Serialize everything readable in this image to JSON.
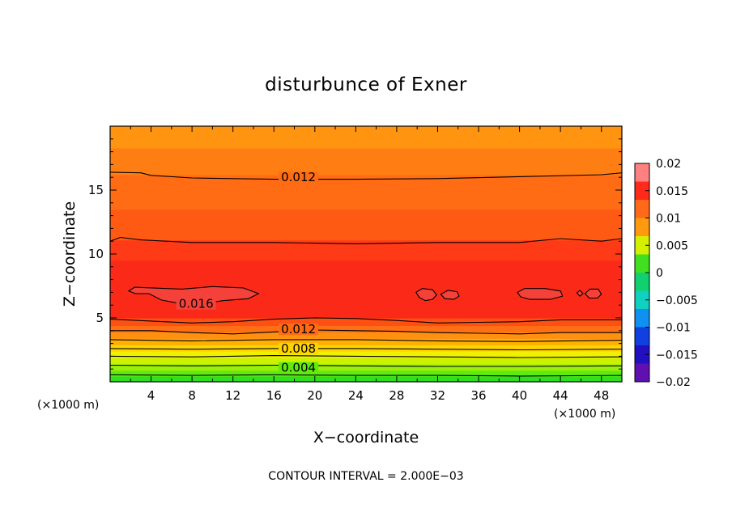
{
  "chart_data": {
    "type": "heatmap",
    "title": "disturbunce of Exner",
    "xlabel": "X−coordinate",
    "ylabel": "Z−coordinate",
    "x_unit": "(×1000 m)",
    "y_unit": "(×1000 m)",
    "xlim": [
      0,
      50
    ],
    "ylim": [
      0,
      20
    ],
    "x_ticks": [
      4,
      8,
      12,
      16,
      20,
      24,
      28,
      32,
      36,
      40,
      44,
      48
    ],
    "y_ticks": [
      5,
      10,
      15
    ],
    "x_tick_labels": [
      "4",
      "8",
      "12",
      "16",
      "20",
      "24",
      "28",
      "32",
      "36",
      "40",
      "44",
      "48"
    ],
    "y_tick_labels": [
      "5",
      "10",
      "15"
    ],
    "footnote": "CONTOUR INTERVAL = 2.000E−03",
    "contour_interval": 0.002,
    "colorbar": {
      "range": [
        -0.02,
        0.02
      ],
      "ticks": [
        0.02,
        0.015,
        0.01,
        0.005,
        0,
        -0.005,
        -0.01,
        -0.015,
        -0.02
      ],
      "tick_labels": [
        "0.02",
        "0.015",
        "0.01",
        "0.005",
        "0",
        "−0.005",
        "−0.01",
        "−0.015",
        "−0.02"
      ],
      "colors": [
        "#ff8080",
        "#ff2a1a",
        "#ff6a1a",
        "#ff9a10",
        "#d4f000",
        "#40e020",
        "#10d070",
        "#10d0c0",
        "#1090f0",
        "#1040e0",
        "#2010c0",
        "#6010b0"
      ]
    },
    "contour_labels": [
      {
        "text": "0.012",
        "x": 18.4,
        "z": 16.0
      },
      {
        "text": "0.016",
        "x": 8.4,
        "z": 6.1
      },
      {
        "text": "0.012",
        "x": 18.4,
        "z": 4.1
      },
      {
        "text": "0.008",
        "x": 18.4,
        "z": 2.6
      },
      {
        "text": "0.004",
        "x": 18.4,
        "z": 1.1
      }
    ],
    "bands": [
      {
        "z0": 0.0,
        "z1": 0.45,
        "value": 0.002,
        "color": "#30e020"
      },
      {
        "z0": 0.45,
        "z1": 0.9,
        "value": 0.004,
        "color": "#60ea10"
      },
      {
        "z0": 0.9,
        "z1": 1.4,
        "value": 0.005,
        "color": "#9af008"
      },
      {
        "z0": 1.4,
        "z1": 1.9,
        "value": 0.006,
        "color": "#ccf200"
      },
      {
        "z0": 1.9,
        "z1": 2.4,
        "value": 0.007,
        "color": "#f0f000"
      },
      {
        "z0": 2.4,
        "z1": 2.9,
        "value": 0.008,
        "color": "#ffd400"
      },
      {
        "z0": 2.9,
        "z1": 3.4,
        "value": 0.009,
        "color": "#ffb000"
      },
      {
        "z0": 3.4,
        "z1": 3.9,
        "value": 0.01,
        "color": "#ff9010"
      },
      {
        "z0": 3.9,
        "z1": 4.4,
        "value": 0.011,
        "color": "#ff7014"
      },
      {
        "z0": 4.4,
        "z1": 5.0,
        "value": 0.012,
        "color": "#ff5014"
      },
      {
        "z0": 5.0,
        "z1": 9.5,
        "value": 0.015,
        "color": "#fb2a18"
      },
      {
        "z0": 9.5,
        "z1": 11.1,
        "value": 0.014,
        "color": "#ff3a16"
      },
      {
        "z0": 11.1,
        "z1": 13.5,
        "value": 0.013,
        "color": "#ff5a14"
      },
      {
        "z0": 13.5,
        "z1": 16.2,
        "value": 0.012,
        "color": "#ff6c14"
      },
      {
        "z0": 16.2,
        "z1": 18.3,
        "value": 0.011,
        "color": "#ff7e14"
      },
      {
        "z0": 18.3,
        "z1": 20.0,
        "value": 0.01,
        "color": "#ff9410"
      }
    ],
    "contour_lines": [
      [
        [
          0,
          16.4
        ],
        [
          3,
          16.35
        ],
        [
          4,
          16.15
        ],
        [
          8,
          15.95
        ],
        [
          16,
          15.85
        ],
        [
          24,
          15.85
        ],
        [
          32,
          15.9
        ],
        [
          40,
          16.05
        ],
        [
          48,
          16.2
        ],
        [
          50,
          16.35
        ]
      ],
      [
        [
          0,
          11.0
        ],
        [
          1,
          11.3
        ],
        [
          3,
          11.1
        ],
        [
          8,
          10.9
        ],
        [
          16,
          10.9
        ],
        [
          24,
          10.8
        ],
        [
          32,
          10.9
        ],
        [
          40,
          10.9
        ],
        [
          44,
          11.2
        ],
        [
          48,
          11.0
        ],
        [
          50,
          11.2
        ]
      ],
      [
        [
          0,
          4.9
        ],
        [
          4,
          4.75
        ],
        [
          8,
          4.6
        ],
        [
          12,
          4.7
        ],
        [
          16,
          4.9
        ],
        [
          20,
          5.0
        ],
        [
          24,
          4.95
        ],
        [
          28,
          4.8
        ],
        [
          32,
          4.6
        ],
        [
          36,
          4.65
        ],
        [
          40,
          4.7
        ],
        [
          44,
          4.85
        ],
        [
          50,
          4.85
        ]
      ],
      [
        [
          0,
          4.0
        ],
        [
          4,
          4.0
        ],
        [
          8,
          3.85
        ],
        [
          12,
          3.75
        ],
        [
          16,
          3.9
        ],
        [
          20,
          4.05
        ],
        [
          24,
          4.0
        ],
        [
          28,
          3.95
        ],
        [
          32,
          3.85
        ],
        [
          36,
          3.8
        ],
        [
          40,
          3.75
        ],
        [
          44,
          3.85
        ],
        [
          50,
          3.85
        ]
      ],
      [
        [
          0,
          3.3
        ],
        [
          8,
          3.2
        ],
        [
          16,
          3.3
        ],
        [
          24,
          3.3
        ],
        [
          32,
          3.2
        ],
        [
          40,
          3.15
        ],
        [
          50,
          3.25
        ]
      ],
      [
        [
          0,
          2.6
        ],
        [
          8,
          2.55
        ],
        [
          16,
          2.6
        ],
        [
          24,
          2.6
        ],
        [
          32,
          2.55
        ],
        [
          40,
          2.5
        ],
        [
          50,
          2.55
        ]
      ],
      [
        [
          0,
          2.0
        ],
        [
          8,
          1.95
        ],
        [
          16,
          2.05
        ],
        [
          24,
          2.0
        ],
        [
          32,
          1.95
        ],
        [
          40,
          1.9
        ],
        [
          50,
          1.95
        ]
      ],
      [
        [
          0,
          1.3
        ],
        [
          8,
          1.25
        ],
        [
          16,
          1.3
        ],
        [
          24,
          1.25
        ],
        [
          32,
          1.2
        ],
        [
          40,
          1.2
        ],
        [
          50,
          1.25
        ]
      ],
      [
        [
          0,
          0.55
        ],
        [
          8,
          0.5
        ],
        [
          16,
          0.55
        ],
        [
          24,
          0.5
        ],
        [
          32,
          0.5
        ],
        [
          40,
          0.45
        ],
        [
          50,
          0.5
        ]
      ]
    ],
    "closed_contours": [
      [
        [
          1.8,
          7.1
        ],
        [
          2.4,
          7.4
        ],
        [
          4.0,
          7.35
        ],
        [
          7.0,
          7.25
        ],
        [
          10.0,
          7.45
        ],
        [
          13.0,
          7.35
        ],
        [
          14.5,
          6.9
        ],
        [
          13.5,
          6.5
        ],
        [
          11.0,
          6.35
        ],
        [
          9.0,
          6.1
        ],
        [
          7.0,
          6.1
        ],
        [
          5.0,
          6.4
        ],
        [
          3.8,
          6.9
        ],
        [
          2.5,
          6.9
        ]
      ],
      [
        [
          29.9,
          7.0
        ],
        [
          30.5,
          7.3
        ],
        [
          31.5,
          7.2
        ],
        [
          31.9,
          6.8
        ],
        [
          31.5,
          6.45
        ],
        [
          30.8,
          6.35
        ],
        [
          30.2,
          6.6
        ]
      ],
      [
        [
          32.3,
          6.85
        ],
        [
          33.0,
          7.15
        ],
        [
          33.9,
          7.05
        ],
        [
          34.1,
          6.7
        ],
        [
          33.6,
          6.45
        ],
        [
          32.7,
          6.5
        ]
      ],
      [
        [
          39.8,
          7.0
        ],
        [
          40.5,
          7.3
        ],
        [
          42.5,
          7.3
        ],
        [
          44.0,
          7.1
        ],
        [
          44.2,
          6.7
        ],
        [
          43.0,
          6.45
        ],
        [
          41.0,
          6.45
        ],
        [
          40.1,
          6.65
        ]
      ],
      [
        [
          46.4,
          6.9
        ],
        [
          46.9,
          7.25
        ],
        [
          47.7,
          7.25
        ],
        [
          48.0,
          6.85
        ],
        [
          47.6,
          6.55
        ],
        [
          46.8,
          6.55
        ]
      ],
      [
        [
          45.6,
          6.95
        ],
        [
          45.9,
          7.15
        ],
        [
          46.2,
          6.9
        ],
        [
          45.9,
          6.7
        ]
      ]
    ]
  }
}
